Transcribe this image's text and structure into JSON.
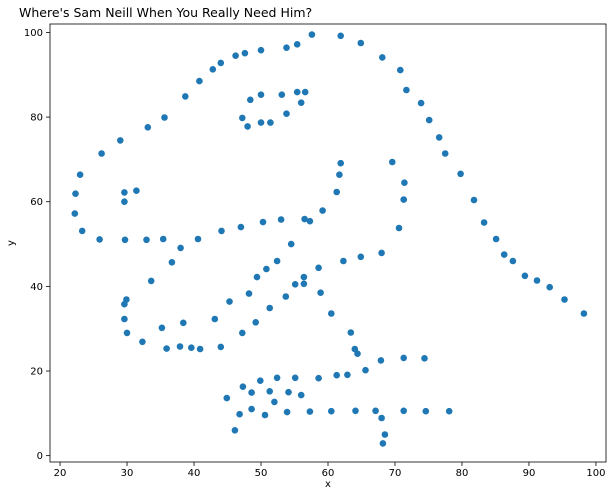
{
  "chart_data": {
    "type": "scatter",
    "title": "Where's Sam Neill When You Really Need Him?",
    "xlabel": "x",
    "ylabel": "y",
    "xlim": [
      18.5,
      101.5
    ],
    "ylim": [
      -1.5,
      102
    ],
    "xticks": [
      20,
      30,
      40,
      50,
      60,
      70,
      80,
      90,
      100
    ],
    "yticks": [
      0,
      20,
      40,
      60,
      80,
      100
    ],
    "grid": false,
    "point_color": "#1f77b4",
    "points": [
      [
        55.4,
        97.2
      ],
      [
        57.6,
        99.5
      ],
      [
        61.9,
        99.2
      ],
      [
        64.9,
        97.5
      ],
      [
        68.1,
        94.1
      ],
      [
        70.8,
        91.1
      ],
      [
        71.7,
        86.4
      ],
      [
        73.9,
        83.3
      ],
      [
        75.1,
        79.3
      ],
      [
        76.6,
        75.2
      ],
      [
        77.5,
        71.4
      ],
      [
        79.8,
        66.6
      ],
      [
        81.8,
        60.4
      ],
      [
        83.3,
        55.1
      ],
      [
        85.1,
        51.2
      ],
      [
        86.3,
        47.5
      ],
      [
        87.6,
        46.0
      ],
      [
        89.4,
        42.5
      ],
      [
        91.2,
        41.4
      ],
      [
        93.1,
        39.8
      ],
      [
        95.3,
        36.9
      ],
      [
        98.2,
        33.6
      ],
      [
        53.8,
        96.4
      ],
      [
        50.0,
        95.8
      ],
      [
        47.6,
        95.1
      ],
      [
        46.2,
        94.5
      ],
      [
        44.0,
        92.8
      ],
      [
        42.8,
        91.3
      ],
      [
        40.8,
        88.5
      ],
      [
        38.7,
        84.9
      ],
      [
        35.6,
        79.9
      ],
      [
        33.1,
        77.6
      ],
      [
        29.0,
        74.5
      ],
      [
        26.2,
        71.4
      ],
      [
        23.0,
        66.4
      ],
      [
        22.3,
        61.9
      ],
      [
        22.2,
        57.2
      ],
      [
        23.3,
        53.1
      ],
      [
        25.9,
        51.1
      ],
      [
        29.7,
        51.0
      ],
      [
        32.9,
        51.0
      ],
      [
        35.4,
        51.2
      ],
      [
        38.0,
        49.1
      ],
      [
        40.6,
        51.2
      ],
      [
        44.1,
        53.1
      ],
      [
        47.0,
        54.0
      ],
      [
        50.3,
        55.2
      ],
      [
        53.0,
        55.8
      ],
      [
        56.5,
        55.9
      ],
      [
        57.3,
        55.4
      ],
      [
        59.2,
        57.9
      ],
      [
        61.3,
        62.3
      ],
      [
        61.7,
        66.4
      ],
      [
        61.9,
        69.1
      ],
      [
        29.6,
        62.2
      ],
      [
        31.4,
        62.6
      ],
      [
        29.6,
        60.0
      ],
      [
        47.2,
        79.8
      ],
      [
        48.0,
        77.8
      ],
      [
        48.4,
        84.1
      ],
      [
        50.0,
        85.3
      ],
      [
        50.0,
        78.7
      ],
      [
        51.4,
        78.7
      ],
      [
        53.1,
        85.3
      ],
      [
        53.8,
        80.8
      ],
      [
        55.4,
        85.9
      ],
      [
        56.0,
        83.4
      ],
      [
        56.6,
        85.9
      ],
      [
        36.7,
        45.7
      ],
      [
        33.6,
        41.3
      ],
      [
        29.9,
        36.9
      ],
      [
        29.6,
        35.8
      ],
      [
        29.6,
        32.3
      ],
      [
        30.0,
        29.0
      ],
      [
        32.3,
        26.9
      ],
      [
        35.2,
        30.2
      ],
      [
        35.9,
        25.3
      ],
      [
        37.9,
        25.8
      ],
      [
        38.4,
        31.4
      ],
      [
        39.6,
        25.5
      ],
      [
        40.9,
        25.2
      ],
      [
        43.1,
        32.3
      ],
      [
        44.0,
        25.7
      ],
      [
        45.3,
        36.4
      ],
      [
        47.2,
        29.0
      ],
      [
        48.2,
        38.3
      ],
      [
        49.2,
        31.5
      ],
      [
        49.4,
        42.2
      ],
      [
        50.8,
        44.1
      ],
      [
        51.3,
        34.9
      ],
      [
        52.4,
        46.0
      ],
      [
        53.7,
        37.6
      ],
      [
        54.5,
        50.0
      ],
      [
        55.1,
        40.5
      ],
      [
        56.4,
        42.2
      ],
      [
        56.4,
        40.6
      ],
      [
        58.6,
        44.4
      ],
      [
        58.9,
        38.5
      ],
      [
        60.5,
        33.6
      ],
      [
        62.3,
        46.0
      ],
      [
        63.4,
        29.1
      ],
      [
        64.0,
        25.2
      ],
      [
        64.4,
        24.1
      ],
      [
        64.9,
        47.0
      ],
      [
        68.0,
        47.9
      ],
      [
        70.6,
        53.8
      ],
      [
        71.3,
        60.5
      ],
      [
        71.4,
        64.5
      ],
      [
        69.6,
        69.4
      ],
      [
        44.9,
        13.6
      ],
      [
        46.1,
        6.0
      ],
      [
        46.8,
        9.8
      ],
      [
        47.3,
        16.3
      ],
      [
        48.6,
        14.9
      ],
      [
        48.6,
        11.0
      ],
      [
        49.9,
        17.7
      ],
      [
        50.6,
        9.6
      ],
      [
        51.3,
        15.2
      ],
      [
        52.0,
        12.7
      ],
      [
        52.4,
        18.4
      ],
      [
        53.9,
        10.3
      ],
      [
        54.1,
        15.0
      ],
      [
        55.1,
        18.4
      ],
      [
        56.0,
        14.3
      ],
      [
        57.3,
        10.4
      ],
      [
        58.6,
        18.3
      ],
      [
        60.5,
        10.5
      ],
      [
        61.3,
        19.0
      ],
      [
        62.9,
        19.1
      ],
      [
        64.1,
        10.6
      ],
      [
        65.6,
        20.2
      ],
      [
        67.1,
        10.6
      ],
      [
        67.9,
        22.5
      ],
      [
        68.0,
        8.9
      ],
      [
        68.2,
        2.9
      ],
      [
        68.5,
        5.0
      ],
      [
        71.3,
        23.1
      ],
      [
        71.3,
        10.6
      ],
      [
        74.4,
        23.0
      ],
      [
        74.6,
        10.5
      ],
      [
        78.1,
        10.5
      ]
    ]
  }
}
